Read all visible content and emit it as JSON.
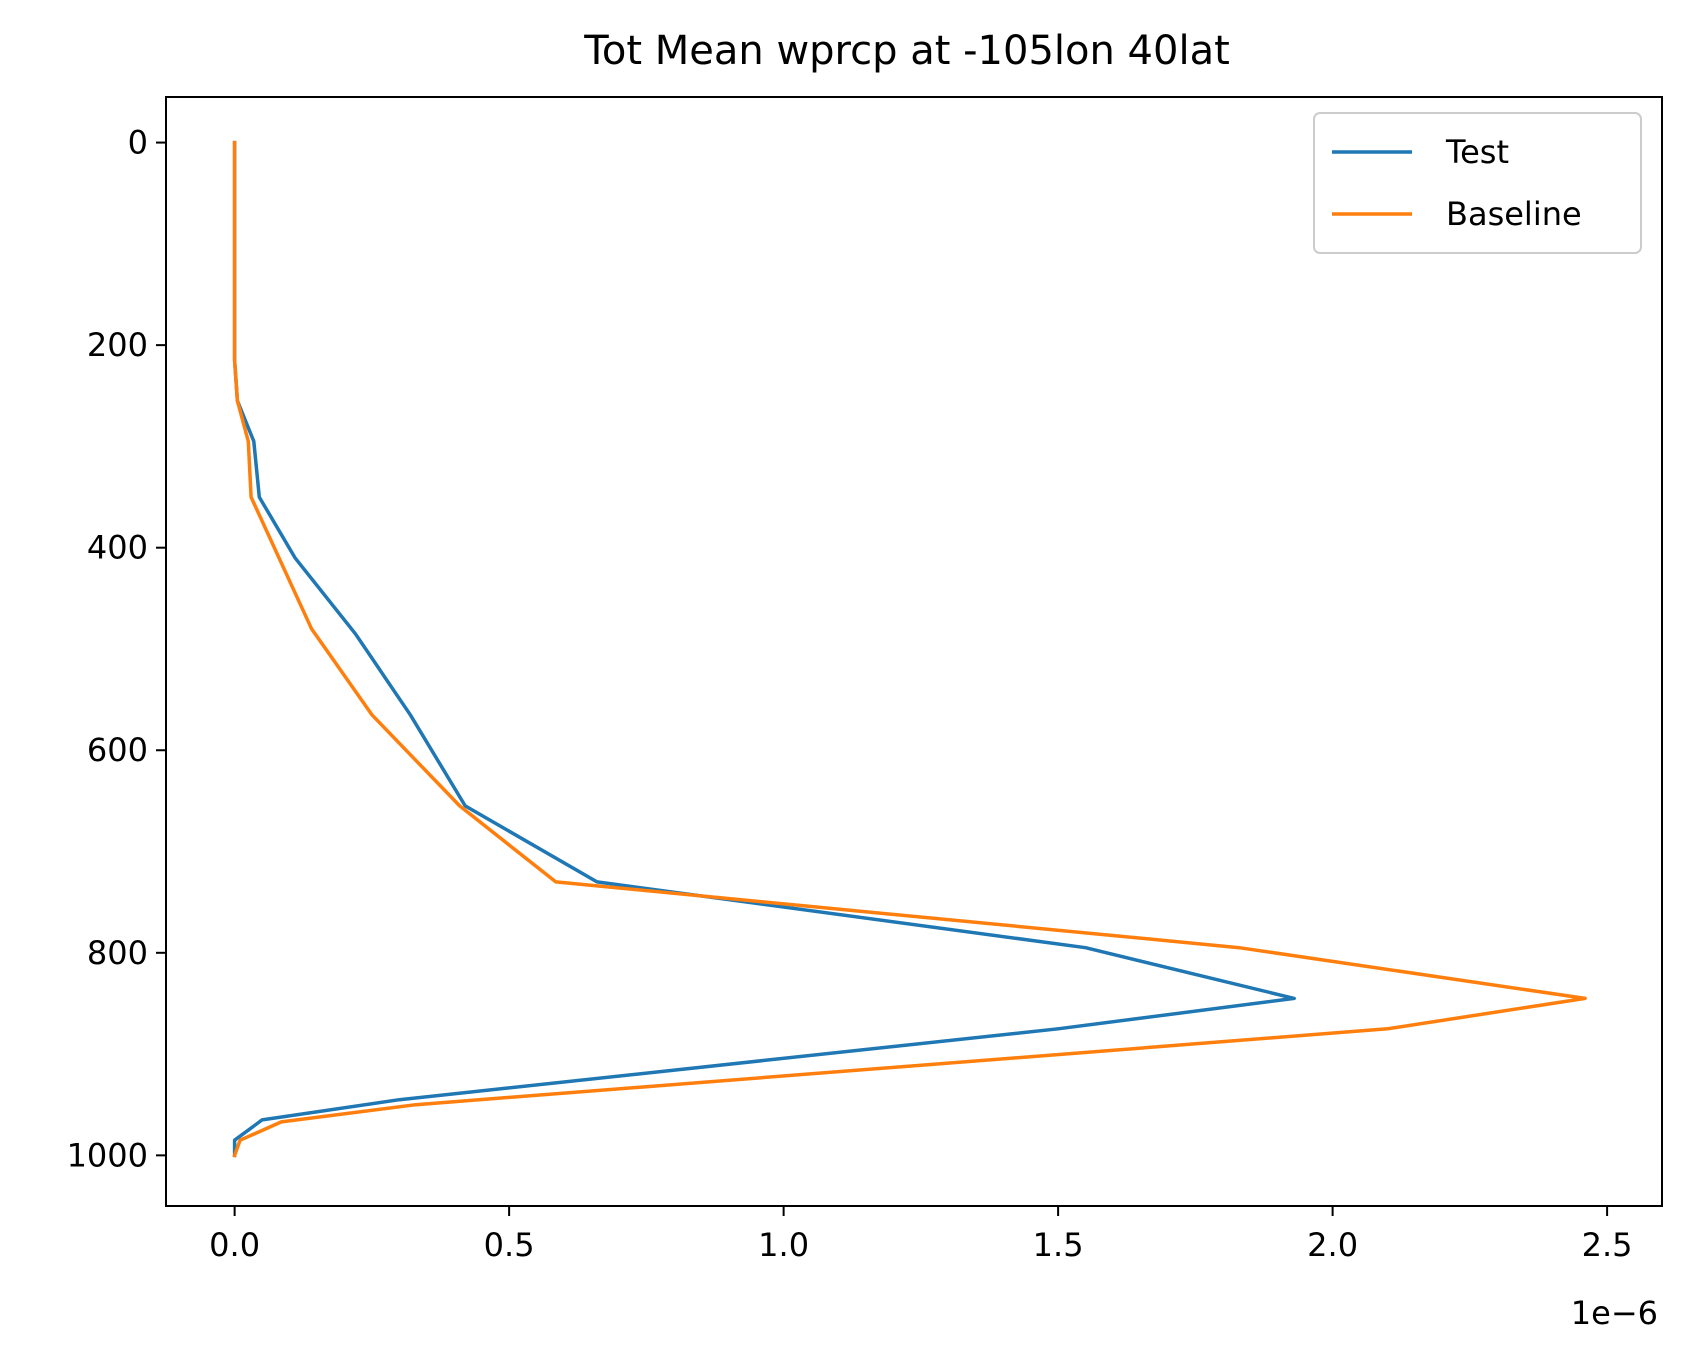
{
  "chart_data": {
    "type": "line",
    "title": "Tot Mean wprcp at -105lon 40lat",
    "xlabel": "",
    "ylabel": "",
    "x_offset_label": "1e−6",
    "xlim": [
      -0.125,
      2.6
    ],
    "ylim": [
      1050,
      -45
    ],
    "y_inverted": true,
    "x_ticks": [
      0.0,
      0.5,
      1.0,
      1.5,
      2.0,
      2.5
    ],
    "x_tick_labels": [
      "0.0",
      "0.5",
      "1.0",
      "1.5",
      "2.0",
      "2.5"
    ],
    "y_ticks": [
      0,
      200,
      400,
      600,
      800,
      1000
    ],
    "y_tick_labels": [
      "0",
      "200",
      "400",
      "600",
      "800",
      "1000"
    ],
    "grid": false,
    "legend_position": "top-right",
    "series": [
      {
        "name": "Test",
        "color": "#1f77b4",
        "x": [
          0.0,
          0.0,
          0.0,
          0.0,
          0.0,
          0.0,
          0.005,
          0.035,
          0.045,
          0.11,
          0.22,
          0.32,
          0.42,
          0.66,
          1.55,
          1.93,
          1.5,
          0.3,
          0.05,
          0.0,
          0.0
        ],
        "y": [
          0,
          50,
          100,
          150,
          190,
          215,
          255,
          295,
          350,
          410,
          485,
          565,
          655,
          730,
          795,
          845,
          875,
          945,
          965,
          985,
          1000
        ]
      },
      {
        "name": "Baseline",
        "color": "#ff7f0e",
        "x": [
          0.0,
          0.0,
          0.0,
          0.0,
          0.0,
          0.0,
          0.005,
          0.025,
          0.03,
          0.14,
          0.25,
          0.41,
          0.585,
          1.83,
          2.46,
          2.1,
          0.33,
          0.085,
          0.01,
          0.0
        ],
        "y": [
          0,
          50,
          100,
          150,
          190,
          215,
          255,
          295,
          350,
          480,
          565,
          655,
          730,
          795,
          845,
          875,
          950,
          967,
          985,
          1000
        ]
      }
    ]
  }
}
